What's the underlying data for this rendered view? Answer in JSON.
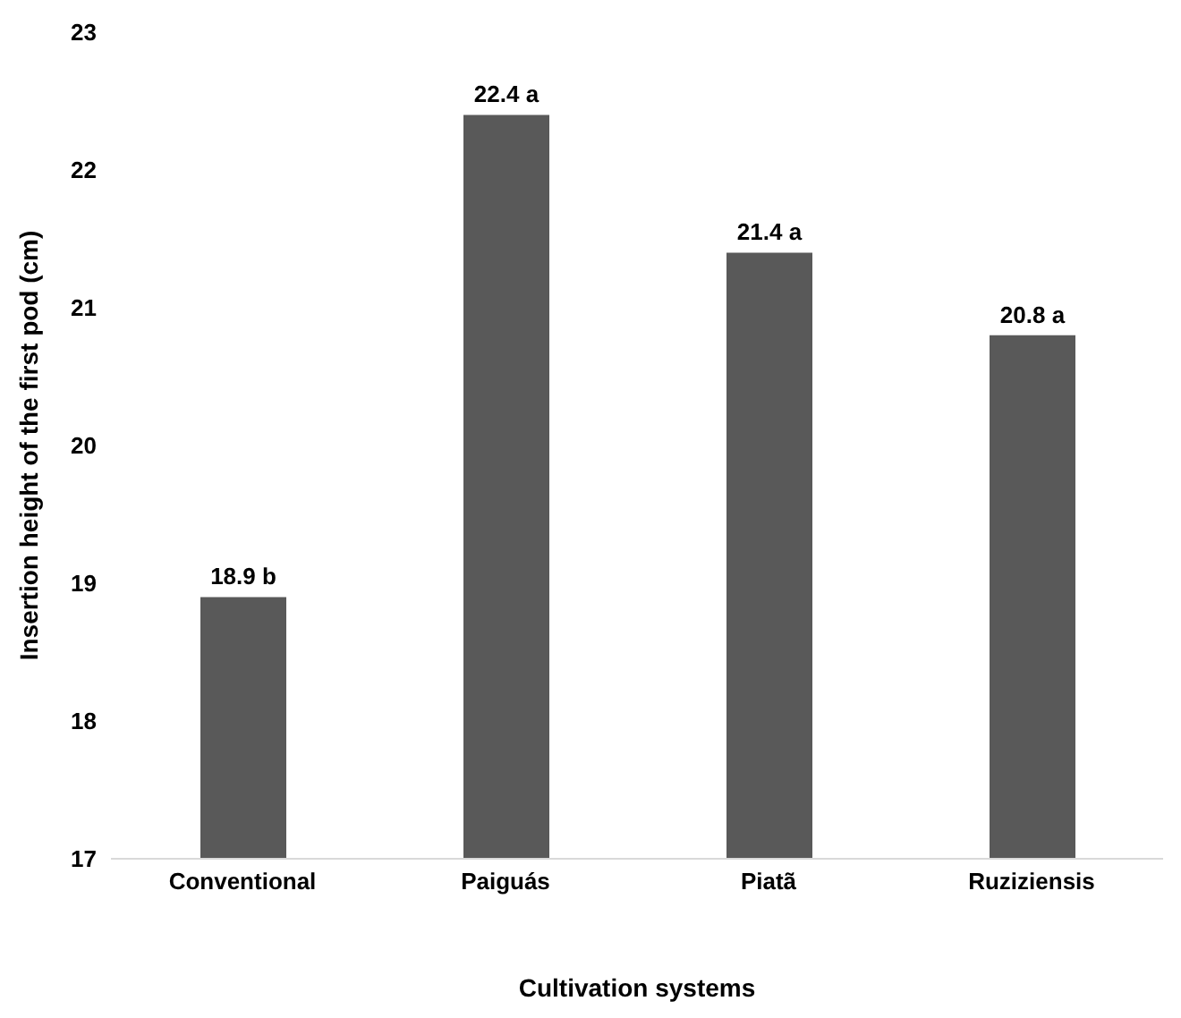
{
  "chart_data": {
    "type": "bar",
    "xlabel": "Cultivation systems",
    "ylabel": "Insertion height of the first pod (cm)",
    "categories": [
      "Conventional",
      "Paiguás",
      "Piatã",
      "Ruziziensis"
    ],
    "values": [
      18.9,
      22.4,
      21.4,
      20.8
    ],
    "value_labels": [
      "18.9 b",
      "22.4 a",
      "21.4 a",
      "20.8 a"
    ],
    "color": "#595959",
    "ylim": [
      17,
      23
    ],
    "yticks": [
      17,
      18,
      19,
      20,
      21,
      22,
      23
    ],
    "grid": false,
    "legend": false
  }
}
